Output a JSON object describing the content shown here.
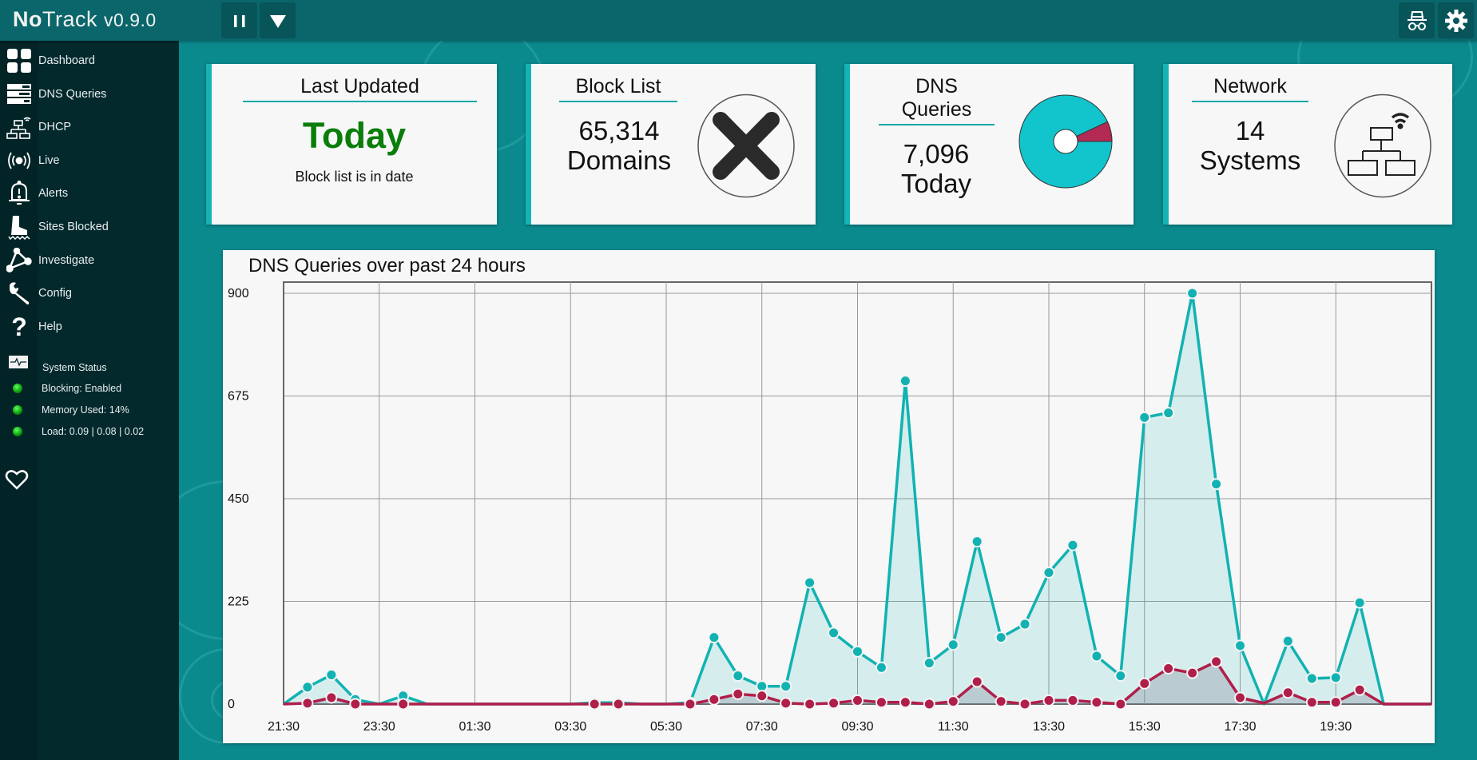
{
  "header": {
    "brand_bold": "No",
    "brand_rest": "Track",
    "version": "v0.9.0",
    "pause_icon": "pause-icon",
    "menu_icon": "triangle-down-icon",
    "privacy_icon": "incognito-icon",
    "settings_icon": "gear-icon"
  },
  "sidebar": {
    "items": [
      {
        "label": "Dashboard",
        "icon": "dashboard-icon"
      },
      {
        "label": "DNS Queries",
        "icon": "dns-queries-icon"
      },
      {
        "label": "DHCP",
        "icon": "network-icon"
      },
      {
        "label": "Live",
        "icon": "broadcast-icon"
      },
      {
        "label": "Alerts",
        "icon": "bell-alert-icon"
      },
      {
        "label": "Sites Blocked",
        "icon": "boot-icon"
      },
      {
        "label": "Investigate",
        "icon": "investigate-icon"
      },
      {
        "label": "Config",
        "icon": "wrench-icon"
      },
      {
        "label": "Help",
        "icon": "question-icon"
      }
    ],
    "status": {
      "title": "System Status",
      "lines": [
        "Blocking: Enabled",
        "Memory Used: 14%",
        "Load: 0.09 | 0.08 | 0.02"
      ],
      "indicator_color": "#10c010"
    },
    "heart_icon": "heart-icon"
  },
  "cards": {
    "last_updated": {
      "title": "Last Updated",
      "value": "Today",
      "value_color": "#0a7d0a",
      "sub": "Block list is in date"
    },
    "block_list": {
      "title": "Block List",
      "value1": "65,314",
      "value2": "Domains",
      "icon": "cross-icon"
    },
    "dns_queries": {
      "title1": "DNS",
      "title2": "Queries",
      "value1": "7,096",
      "value2": "Today",
      "icon": "pie-chart-icon",
      "blocked_fraction": 0.07
    },
    "network": {
      "title": "Network",
      "value1": "14",
      "value2": "Systems",
      "icon": "network-icon"
    }
  },
  "chart_data": {
    "type": "area",
    "title": "DNS Queries over past 24 hours",
    "ylim": [
      0,
      900
    ],
    "yticks": [
      0,
      225,
      450,
      675,
      900
    ],
    "xtick_labels": [
      "21:30",
      "23:30",
      "01:30",
      "03:30",
      "05:30",
      "07:30",
      "09:30",
      "11:30",
      "13:30",
      "15:30",
      "17:30",
      "19:30"
    ],
    "x": [
      "21:30",
      "22:00",
      "22:30",
      "23:00",
      "23:30",
      "00:00",
      "00:30",
      "01:00",
      "01:30",
      "02:00",
      "02:30",
      "03:00",
      "03:30",
      "04:00",
      "04:30",
      "05:00",
      "05:30",
      "06:00",
      "06:30",
      "07:00",
      "07:30",
      "08:00",
      "08:30",
      "09:00",
      "09:30",
      "10:00",
      "10:30",
      "11:00",
      "11:30",
      "12:00",
      "12:30",
      "13:00",
      "13:30",
      "14:00",
      "14:30",
      "15:00",
      "15:30",
      "16:00",
      "16:30",
      "17:00",
      "17:30",
      "18:00",
      "18:30",
      "19:00",
      "19:30",
      "20:00",
      "20:30",
      "21:00",
      "21:30"
    ],
    "grid": true,
    "series": [
      {
        "color": "#12b2b2",
        "values": [
          0,
          37,
          64,
          10,
          0,
          18,
          0,
          0,
          0,
          0,
          0,
          0,
          0,
          3,
          3,
          0,
          0,
          3,
          146,
          62,
          39,
          39,
          266,
          156,
          115,
          80,
          708,
          90,
          130,
          356,
          146,
          175,
          288,
          348,
          105,
          62,
          628,
          638,
          900,
          482,
          128,
          0,
          138,
          56,
          58,
          222,
          0,
          0,
          0
        ]
      },
      {
        "color": "#b01e4a",
        "values": [
          0,
          2,
          14,
          0,
          0,
          0,
          0,
          0,
          0,
          0,
          0,
          0,
          0,
          0,
          0,
          0,
          0,
          0,
          10,
          22,
          18,
          2,
          0,
          2,
          8,
          4,
          4,
          0,
          6,
          49,
          6,
          0,
          8,
          8,
          4,
          0,
          45,
          78,
          68,
          93,
          14,
          2,
          25,
          4,
          4,
          31,
          0,
          0,
          0
        ]
      }
    ]
  }
}
